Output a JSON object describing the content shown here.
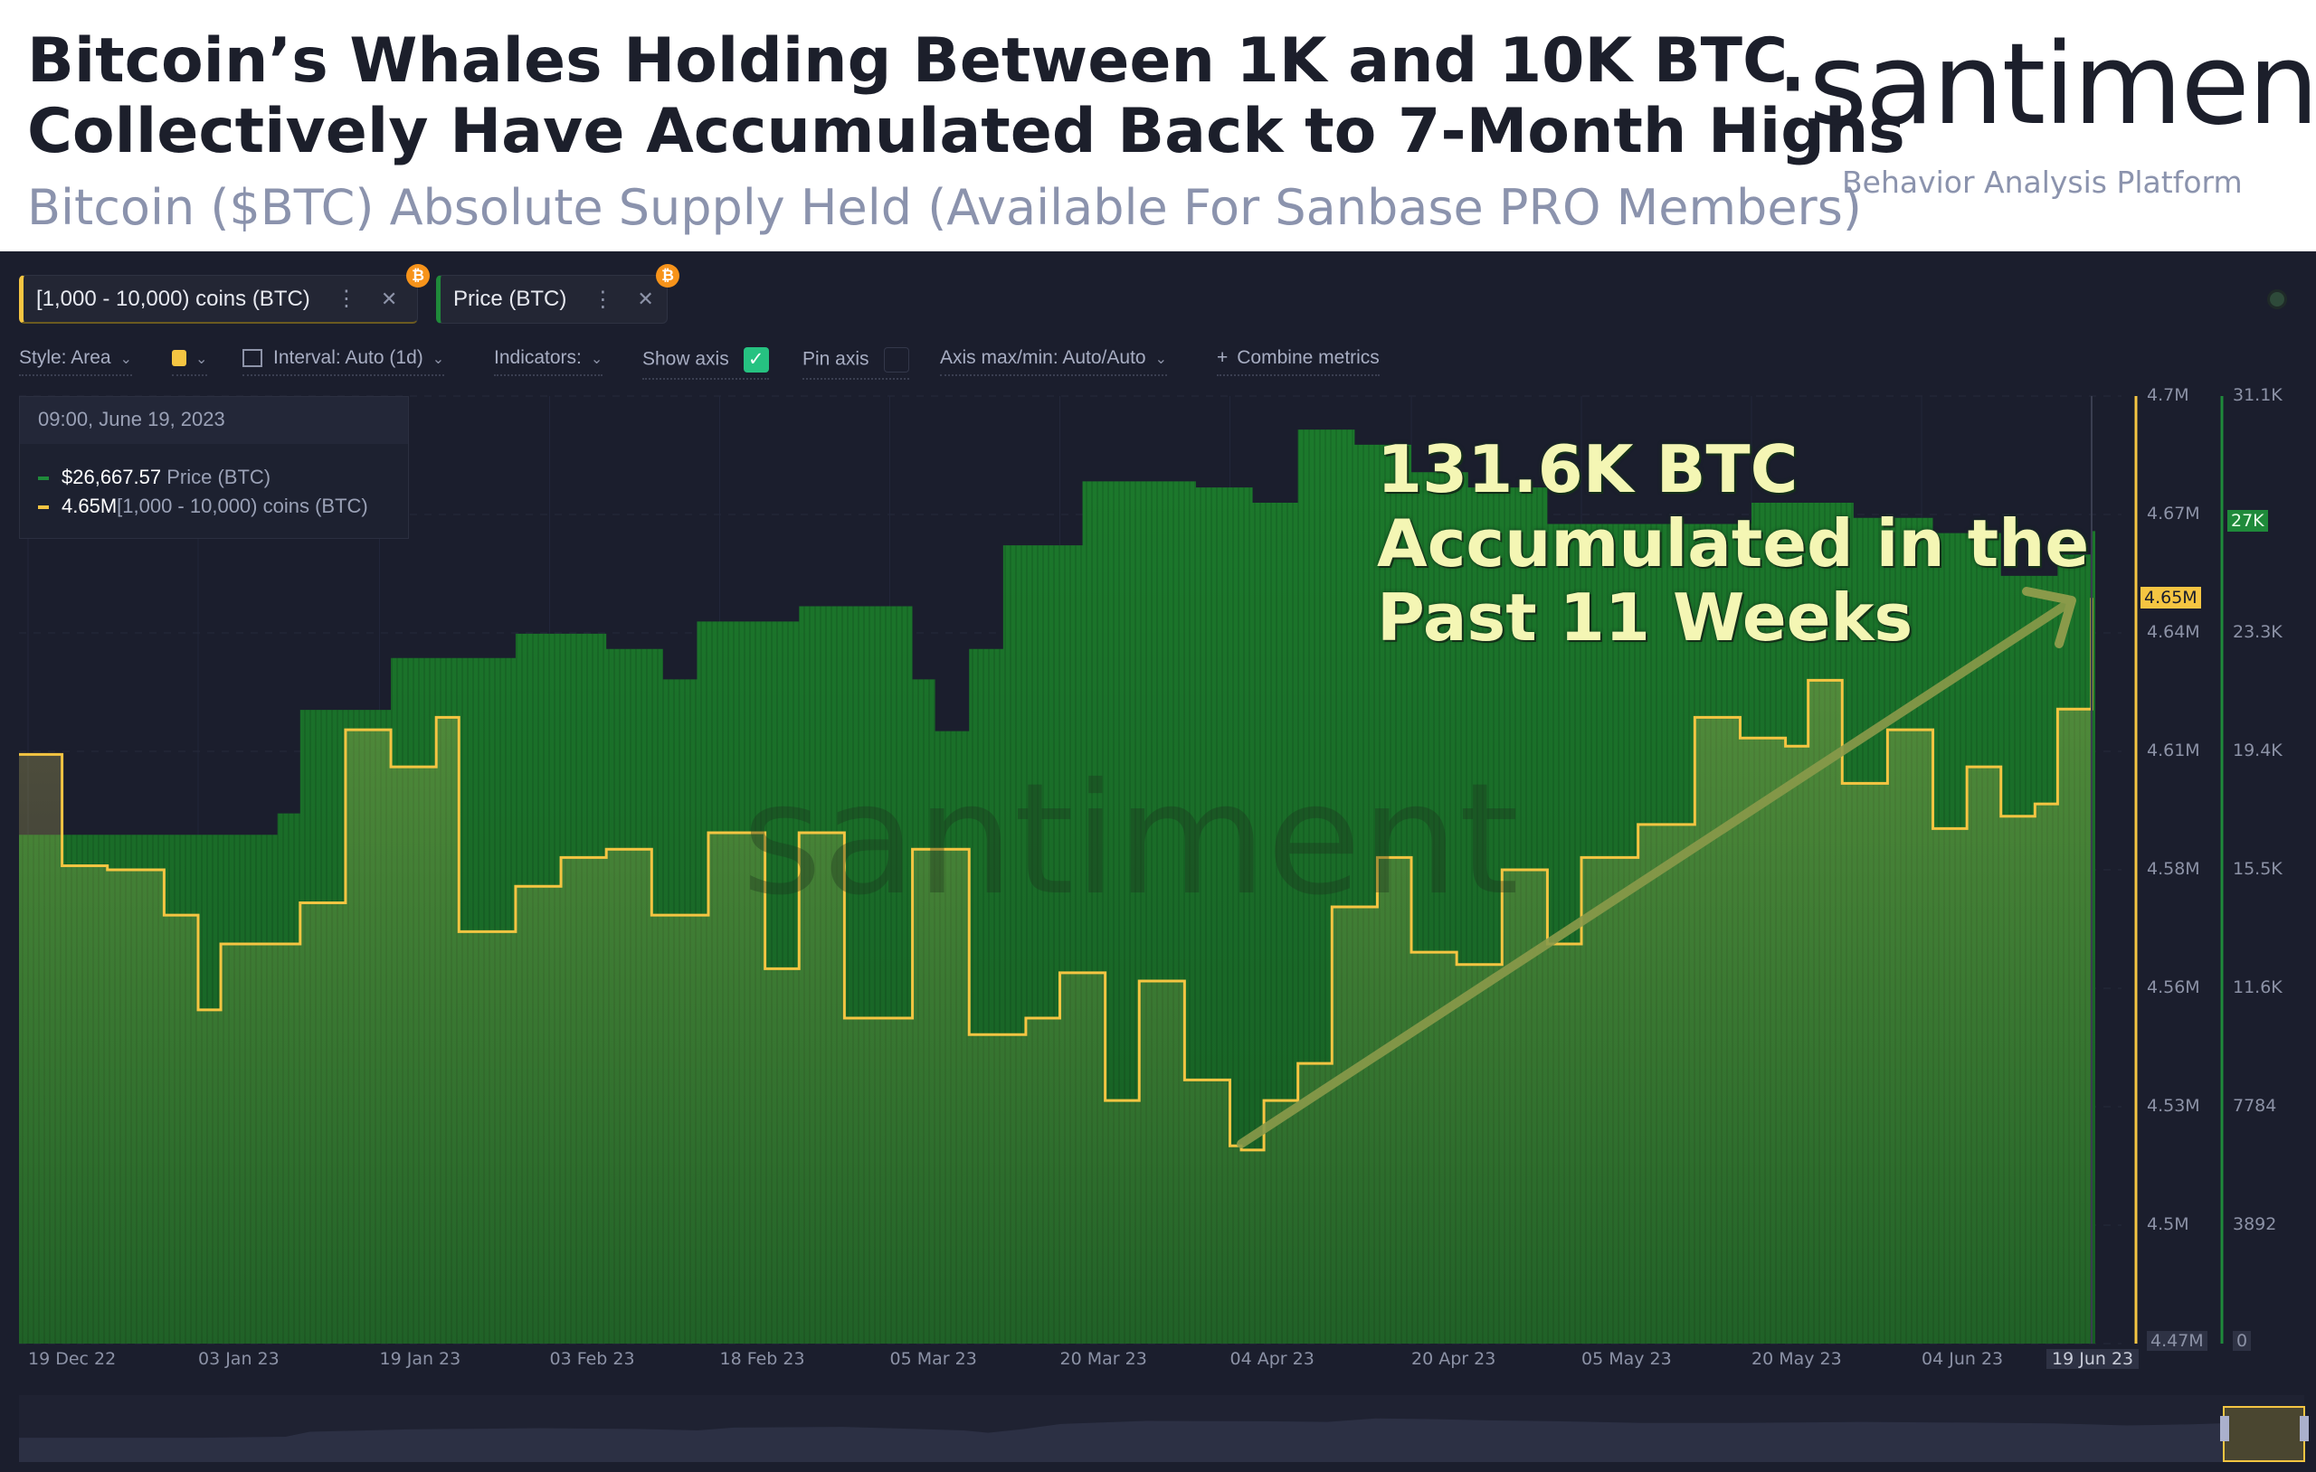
{
  "header": {
    "title_line1": "Bitcoin’s Whales Holding Between 1K and 10K BTC",
    "title_line2": "Collectively Have Accumulated Back to 7-Month Highs",
    "subtitle": "Bitcoin ($BTC) Absolute Supply Held (Available For Sanbase PRO Members)",
    "logo": "·santiment·",
    "tagline": "Behavior Analysis Platform"
  },
  "metric_tabs": [
    {
      "label": "[1,000 - 10,000) coins (BTC)",
      "color": "#f5c542",
      "badge": "₿"
    },
    {
      "label": "Price (BTC)",
      "color": "#1f8a3a",
      "badge": "₿"
    }
  ],
  "toolbar": {
    "style": "Style: Area",
    "interval": "Interval: Auto (1d)",
    "indicators": "Indicators:",
    "show_axis": "Show axis",
    "show_axis_checked": true,
    "pin_axis": "Pin axis",
    "pin_axis_checked": false,
    "axis_maxmin": "Axis max/min: Auto/Auto",
    "combine": "Combine metrics"
  },
  "tooltip": {
    "datetime": "09:00, June 19, 2023",
    "price_value": "$26,667.57",
    "price_label": "Price (BTC)",
    "holdings_value": "4.65M",
    "holdings_label": "[1,000 - 10,000) coins (BTC)"
  },
  "annotation": {
    "line1": "131.6K BTC",
    "line2": "Accumulated in the",
    "line3": "Past 11 Weeks"
  },
  "watermark": "santiment",
  "chart_data": {
    "type": "area",
    "x_ticks": [
      "19 Dec 22",
      "03 Jan 23",
      "19 Jan 23",
      "03 Feb 23",
      "18 Feb 23",
      "05 Mar 23",
      "20 Mar 23",
      "04 Apr 23",
      "20 Apr 23",
      "05 May 23",
      "20 May 23",
      "04 Jun 23",
      "19 Jun 23"
    ],
    "x_tick_dates": [
      "2022-12-19",
      "2023-01-03",
      "2023-01-19",
      "2023-02-03",
      "2023-02-18",
      "2023-03-05",
      "2023-03-20",
      "2023-04-04",
      "2023-04-20",
      "2023-05-05",
      "2023-05-20",
      "2023-06-04",
      "2023-06-19"
    ],
    "y_left": {
      "ticks": [
        "4.7M",
        "4.67M",
        "4.64M",
        "4.61M",
        "4.58M",
        "4.56M",
        "4.53M",
        "4.5M",
        "4.47M"
      ],
      "range": [
        4.47,
        4.7
      ],
      "unit": "M",
      "color": "#f5c542",
      "current": "4.65M"
    },
    "y_right": {
      "ticks": [
        "31.1K",
        "27K",
        "23.3K",
        "19.4K",
        "15.5K",
        "11.6K",
        "7784",
        "3892",
        "0"
      ],
      "range": [
        0,
        31100
      ],
      "color": "#1f8a3a",
      "current": "27K"
    },
    "series": [
      {
        "name": "[1,000 - 10,000) coins (BTC)",
        "color": "#f5c542",
        "unit": "M BTC",
        "points": [
          [
            "2022-12-19",
            4.613
          ],
          [
            "2022-12-22",
            4.586
          ],
          [
            "2022-12-26",
            4.585
          ],
          [
            "2022-12-31",
            4.574
          ],
          [
            "2023-01-03",
            4.551
          ],
          [
            "2023-01-05",
            4.567
          ],
          [
            "2023-01-12",
            4.577
          ],
          [
            "2023-01-16",
            4.619
          ],
          [
            "2023-01-20",
            4.61
          ],
          [
            "2023-01-24",
            4.622
          ],
          [
            "2023-01-26",
            4.57
          ],
          [
            "2023-01-31",
            4.581
          ],
          [
            "2023-02-04",
            4.588
          ],
          [
            "2023-02-08",
            4.59
          ],
          [
            "2023-02-12",
            4.574
          ],
          [
            "2023-02-17",
            4.594
          ],
          [
            "2023-02-22",
            4.561
          ],
          [
            "2023-02-25",
            4.594
          ],
          [
            "2023-03-01",
            4.549
          ],
          [
            "2023-03-07",
            4.59
          ],
          [
            "2023-03-12",
            4.545
          ],
          [
            "2023-03-17",
            4.549
          ],
          [
            "2023-03-20",
            4.56
          ],
          [
            "2023-03-24",
            4.529
          ],
          [
            "2023-03-27",
            4.558
          ],
          [
            "2023-03-31",
            4.534
          ],
          [
            "2023-04-04",
            4.518
          ],
          [
            "2023-04-05",
            4.517
          ],
          [
            "2023-04-07",
            4.529
          ],
          [
            "2023-04-10",
            4.538
          ],
          [
            "2023-04-13",
            4.576
          ],
          [
            "2023-04-17",
            4.588
          ],
          [
            "2023-04-20",
            4.565
          ],
          [
            "2023-04-24",
            4.562
          ],
          [
            "2023-04-28",
            4.585
          ],
          [
            "2023-05-02",
            4.567
          ],
          [
            "2023-05-05",
            4.588
          ],
          [
            "2023-05-10",
            4.596
          ],
          [
            "2023-05-15",
            4.622
          ],
          [
            "2023-05-19",
            4.617
          ],
          [
            "2023-05-23",
            4.615
          ],
          [
            "2023-05-25",
            4.631
          ],
          [
            "2023-05-28",
            4.606
          ],
          [
            "2023-06-01",
            4.619
          ],
          [
            "2023-06-05",
            4.595
          ],
          [
            "2023-06-08",
            4.61
          ],
          [
            "2023-06-11",
            4.598
          ],
          [
            "2023-06-14",
            4.601
          ],
          [
            "2023-06-16",
            4.624
          ],
          [
            "2023-06-19",
            4.651
          ]
        ]
      },
      {
        "name": "Price (BTC)",
        "color": "#1f8a3a",
        "unit": "USD",
        "points": [
          [
            "2022-12-19",
            16700
          ],
          [
            "2023-01-03",
            16700
          ],
          [
            "2023-01-10",
            17400
          ],
          [
            "2023-01-12",
            20800
          ],
          [
            "2023-01-20",
            22500
          ],
          [
            "2023-01-31",
            23300
          ],
          [
            "2023-02-08",
            22800
          ],
          [
            "2023-02-13",
            21800
          ],
          [
            "2023-02-16",
            23700
          ],
          [
            "2023-02-25",
            24200
          ],
          [
            "2023-03-07",
            21800
          ],
          [
            "2023-03-09",
            20100
          ],
          [
            "2023-03-12",
            22800
          ],
          [
            "2023-03-15",
            26200
          ],
          [
            "2023-03-22",
            28300
          ],
          [
            "2023-04-01",
            28100
          ],
          [
            "2023-04-06",
            27600
          ],
          [
            "2023-04-10",
            30000
          ],
          [
            "2023-04-15",
            29500
          ],
          [
            "2023-04-20",
            28600
          ],
          [
            "2023-04-25",
            28100
          ],
          [
            "2023-05-02",
            26900
          ],
          [
            "2023-05-10",
            26900
          ],
          [
            "2023-05-20",
            27600
          ],
          [
            "2023-05-29",
            27100
          ],
          [
            "2023-06-05",
            26600
          ],
          [
            "2023-06-11",
            25200
          ],
          [
            "2023-06-16",
            25900
          ],
          [
            "2023-06-19",
            26667.57
          ]
        ]
      }
    ],
    "grid": true
  }
}
